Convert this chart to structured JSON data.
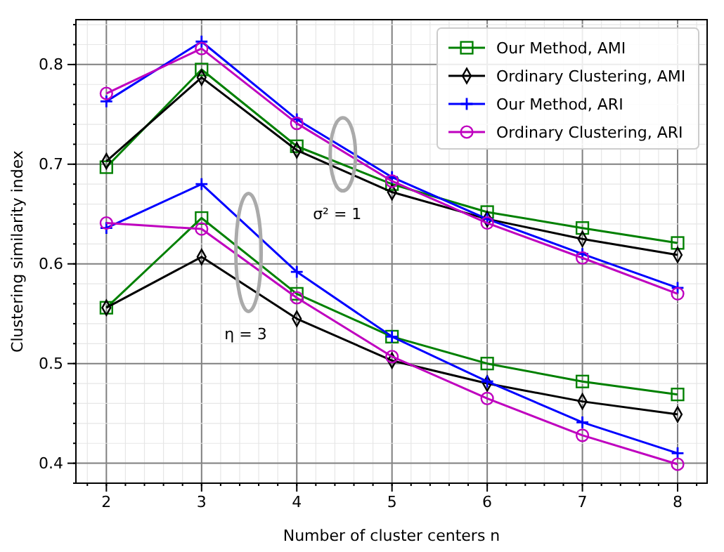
{
  "chart_data": {
    "type": "line",
    "xlabel": "Number of cluster centers n",
    "ylabel": "Clustering similarity index",
    "x": [
      2,
      3,
      4,
      5,
      6,
      7,
      8
    ],
    "xlim": [
      1.68,
      8.31
    ],
    "xticks": [
      2,
      3,
      4,
      5,
      6,
      7,
      8
    ],
    "ylim": [
      0.38,
      0.845
    ],
    "yticks": [
      0.4,
      0.5,
      0.6,
      0.7,
      0.8
    ],
    "grid": true,
    "legend": "top right",
    "series": [
      {
        "name": "Our Method, AMI",
        "color": "#008000",
        "marker": "square",
        "values": [
          0.697,
          0.795,
          0.718,
          0.68,
          0.652,
          0.636,
          0.621
        ]
      },
      {
        "name": "Ordinary Clustering, AMI",
        "color": "#000000",
        "marker": "diamond",
        "values": [
          0.703,
          0.787,
          0.714,
          0.672,
          0.645,
          0.625,
          0.609
        ]
      },
      {
        "name": "Our Method, ARI",
        "color": "#0000ff",
        "marker": "cross",
        "values": [
          0.763,
          0.823,
          0.745,
          0.687,
          0.645,
          0.61,
          0.576
        ]
      },
      {
        "name": "Ordinary Clustering, ARI",
        "color": "#bf00bf",
        "marker": "circle",
        "values": [
          0.771,
          0.816,
          0.741,
          0.683,
          0.641,
          0.606,
          0.57
        ]
      },
      {
        "color": "#008000",
        "marker": "square",
        "values": [
          0.556,
          0.646,
          0.57,
          0.527,
          0.5,
          0.482,
          0.469
        ]
      },
      {
        "color": "#000000",
        "marker": "diamond",
        "values": [
          0.556,
          0.607,
          0.545,
          0.503,
          0.48,
          0.462,
          0.449
        ]
      },
      {
        "color": "#0000ff",
        "marker": "cross",
        "values": [
          0.636,
          0.68,
          0.592,
          0.527,
          0.482,
          0.441,
          0.41
        ]
      },
      {
        "color": "#bf00bf",
        "marker": "circle",
        "values": [
          0.641,
          0.635,
          0.566,
          0.507,
          0.465,
          0.428,
          0.399
        ]
      }
    ],
    "annotations": [
      "σ² = 1",
      "η = 3"
    ]
  }
}
